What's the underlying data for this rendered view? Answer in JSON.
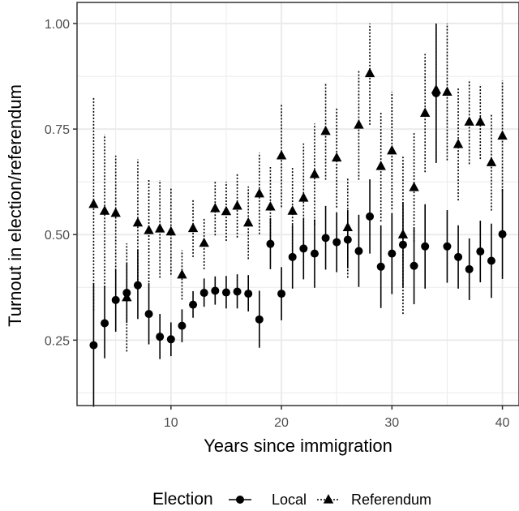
{
  "chart_data": {
    "type": "scatter",
    "title": "",
    "xlabel": "Years since immigration",
    "ylabel": "Turnout in election/referendum",
    "xlim": [
      1.5,
      41.5
    ],
    "ylim": [
      0.095,
      1.05
    ],
    "x_ticks": [
      10,
      20,
      30,
      40
    ],
    "x_tick_labels": [
      "10",
      "20",
      "30",
      "40"
    ],
    "y_ticks": [
      0.25,
      0.5,
      0.75,
      1.0
    ],
    "y_tick_labels": [
      "0.25",
      "0.50",
      "0.75",
      "1.00"
    ],
    "grid": true,
    "legend": {
      "title": "Election",
      "position": "bottom"
    },
    "series": [
      {
        "name": "Local",
        "marker": "circle",
        "error_bar_style": "solid",
        "color": "#000000",
        "points": [
          {
            "x": 3,
            "y": 0.238,
            "lo": 0.092,
            "hi": 0.385
          },
          {
            "x": 4,
            "y": 0.29,
            "lo": 0.207,
            "hi": 0.378
          },
          {
            "x": 5,
            "y": 0.345,
            "lo": 0.27,
            "hi": 0.419
          },
          {
            "x": 6,
            "y": 0.362,
            "lo": 0.291,
            "hi": 0.433
          },
          {
            "x": 7,
            "y": 0.38,
            "lo": 0.3,
            "hi": 0.465
          },
          {
            "x": 8,
            "y": 0.312,
            "lo": 0.24,
            "hi": 0.385
          },
          {
            "x": 9,
            "y": 0.258,
            "lo": 0.205,
            "hi": 0.312
          },
          {
            "x": 10,
            "y": 0.252,
            "lo": 0.212,
            "hi": 0.292
          },
          {
            "x": 11,
            "y": 0.284,
            "lo": 0.245,
            "hi": 0.323
          },
          {
            "x": 12,
            "y": 0.334,
            "lo": 0.303,
            "hi": 0.366
          },
          {
            "x": 13,
            "y": 0.362,
            "lo": 0.329,
            "hi": 0.396
          },
          {
            "x": 14,
            "y": 0.367,
            "lo": 0.334,
            "hi": 0.401
          },
          {
            "x": 15,
            "y": 0.363,
            "lo": 0.325,
            "hi": 0.402
          },
          {
            "x": 16,
            "y": 0.365,
            "lo": 0.325,
            "hi": 0.406
          },
          {
            "x": 17,
            "y": 0.36,
            "lo": 0.318,
            "hi": 0.404
          },
          {
            "x": 18,
            "y": 0.299,
            "lo": 0.232,
            "hi": 0.367
          },
          {
            "x": 19,
            "y": 0.478,
            "lo": 0.418,
            "hi": 0.539
          },
          {
            "x": 20,
            "y": 0.36,
            "lo": 0.297,
            "hi": 0.423
          },
          {
            "x": 21,
            "y": 0.447,
            "lo": 0.372,
            "hi": 0.523
          },
          {
            "x": 22,
            "y": 0.467,
            "lo": 0.394,
            "hi": 0.54
          },
          {
            "x": 23,
            "y": 0.455,
            "lo": 0.374,
            "hi": 0.536
          },
          {
            "x": 24,
            "y": 0.492,
            "lo": 0.417,
            "hi": 0.568
          },
          {
            "x": 25,
            "y": 0.482,
            "lo": 0.411,
            "hi": 0.553
          },
          {
            "x": 26,
            "y": 0.488,
            "lo": 0.42,
            "hi": 0.558
          },
          {
            "x": 27,
            "y": 0.461,
            "lo": 0.376,
            "hi": 0.547
          },
          {
            "x": 28,
            "y": 0.543,
            "lo": 0.455,
            "hi": 0.631
          },
          {
            "x": 29,
            "y": 0.424,
            "lo": 0.326,
            "hi": 0.522
          },
          {
            "x": 30,
            "y": 0.455,
            "lo": 0.359,
            "hi": 0.551
          },
          {
            "x": 31,
            "y": 0.476,
            "lo": 0.375,
            "hi": 0.577
          },
          {
            "x": 32,
            "y": 0.426,
            "lo": 0.335,
            "hi": 0.517
          },
          {
            "x": 33,
            "y": 0.472,
            "lo": 0.372,
            "hi": 0.572
          },
          {
            "x": 34,
            "y": 0.835,
            "lo": 0.67,
            "hi": 1.0
          },
          {
            "x": 35,
            "y": 0.472,
            "lo": 0.386,
            "hi": 0.558
          },
          {
            "x": 36,
            "y": 0.447,
            "lo": 0.372,
            "hi": 0.522
          },
          {
            "x": 37,
            "y": 0.418,
            "lo": 0.345,
            "hi": 0.491
          },
          {
            "x": 38,
            "y": 0.46,
            "lo": 0.387,
            "hi": 0.533
          },
          {
            "x": 39,
            "y": 0.438,
            "lo": 0.35,
            "hi": 0.526
          },
          {
            "x": 40,
            "y": 0.501,
            "lo": 0.395,
            "hi": 0.608
          }
        ]
      },
      {
        "name": "Referendum",
        "marker": "triangle",
        "error_bar_style": "dotted",
        "color": "#000000",
        "points": [
          {
            "x": 3,
            "y": 0.572,
            "lo": 0.32,
            "hi": 0.825
          },
          {
            "x": 4,
            "y": 0.556,
            "lo": 0.375,
            "hi": 0.737
          },
          {
            "x": 5,
            "y": 0.551,
            "lo": 0.415,
            "hi": 0.687
          },
          {
            "x": 6,
            "y": 0.351,
            "lo": 0.223,
            "hi": 0.479
          },
          {
            "x": 7,
            "y": 0.528,
            "lo": 0.377,
            "hi": 0.678
          },
          {
            "x": 8,
            "y": 0.51,
            "lo": 0.387,
            "hi": 0.633
          },
          {
            "x": 9,
            "y": 0.514,
            "lo": 0.398,
            "hi": 0.629
          },
          {
            "x": 10,
            "y": 0.507,
            "lo": 0.405,
            "hi": 0.609
          },
          {
            "x": 11,
            "y": 0.405,
            "lo": 0.346,
            "hi": 0.463
          },
          {
            "x": 12,
            "y": 0.515,
            "lo": 0.447,
            "hi": 0.584
          },
          {
            "x": 13,
            "y": 0.48,
            "lo": 0.418,
            "hi": 0.541
          },
          {
            "x": 14,
            "y": 0.562,
            "lo": 0.498,
            "hi": 0.626
          },
          {
            "x": 15,
            "y": 0.555,
            "lo": 0.485,
            "hi": 0.625
          },
          {
            "x": 16,
            "y": 0.568,
            "lo": 0.493,
            "hi": 0.643
          },
          {
            "x": 17,
            "y": 0.528,
            "lo": 0.442,
            "hi": 0.614
          },
          {
            "x": 18,
            "y": 0.597,
            "lo": 0.501,
            "hi": 0.694
          },
          {
            "x": 19,
            "y": 0.566,
            "lo": 0.472,
            "hi": 0.66
          },
          {
            "x": 20,
            "y": 0.687,
            "lo": 0.565,
            "hi": 0.809
          },
          {
            "x": 21,
            "y": 0.556,
            "lo": 0.454,
            "hi": 0.658
          },
          {
            "x": 22,
            "y": 0.587,
            "lo": 0.459,
            "hi": 0.716
          },
          {
            "x": 23,
            "y": 0.643,
            "lo": 0.523,
            "hi": 0.763
          },
          {
            "x": 24,
            "y": 0.745,
            "lo": 0.63,
            "hi": 0.86
          },
          {
            "x": 25,
            "y": 0.682,
            "lo": 0.564,
            "hi": 0.8
          },
          {
            "x": 26,
            "y": 0.517,
            "lo": 0.398,
            "hi": 0.635
          },
          {
            "x": 27,
            "y": 0.76,
            "lo": 0.63,
            "hi": 0.89
          },
          {
            "x": 28,
            "y": 0.882,
            "lo": 0.76,
            "hi": 1.0
          },
          {
            "x": 29,
            "y": 0.662,
            "lo": 0.531,
            "hi": 0.792
          },
          {
            "x": 30,
            "y": 0.699,
            "lo": 0.56,
            "hi": 0.838
          },
          {
            "x": 31,
            "y": 0.5,
            "lo": 0.312,
            "hi": 0.688
          },
          {
            "x": 32,
            "y": 0.612,
            "lo": 0.483,
            "hi": 0.742
          },
          {
            "x": 33,
            "y": 0.788,
            "lo": 0.648,
            "hi": 0.928
          },
          {
            "x": 34,
            "y": 0.843,
            "lo": 0.67,
            "hi": 1.0
          },
          {
            "x": 35,
            "y": 0.838,
            "lo": 0.676,
            "hi": 1.0
          },
          {
            "x": 36,
            "y": 0.714,
            "lo": 0.581,
            "hi": 0.846
          },
          {
            "x": 37,
            "y": 0.767,
            "lo": 0.667,
            "hi": 0.867
          },
          {
            "x": 38,
            "y": 0.767,
            "lo": 0.679,
            "hi": 0.856
          },
          {
            "x": 39,
            "y": 0.671,
            "lo": 0.557,
            "hi": 0.786
          },
          {
            "x": 40,
            "y": 0.734,
            "lo": 0.603,
            "hi": 0.865
          }
        ]
      }
    ]
  },
  "colors": {
    "panel_border": "#333333",
    "grid_major": "#ebebeb",
    "grid_minor": "#f5f5f5",
    "tick_label": "#4d4d4d",
    "marker": "#000000"
  }
}
